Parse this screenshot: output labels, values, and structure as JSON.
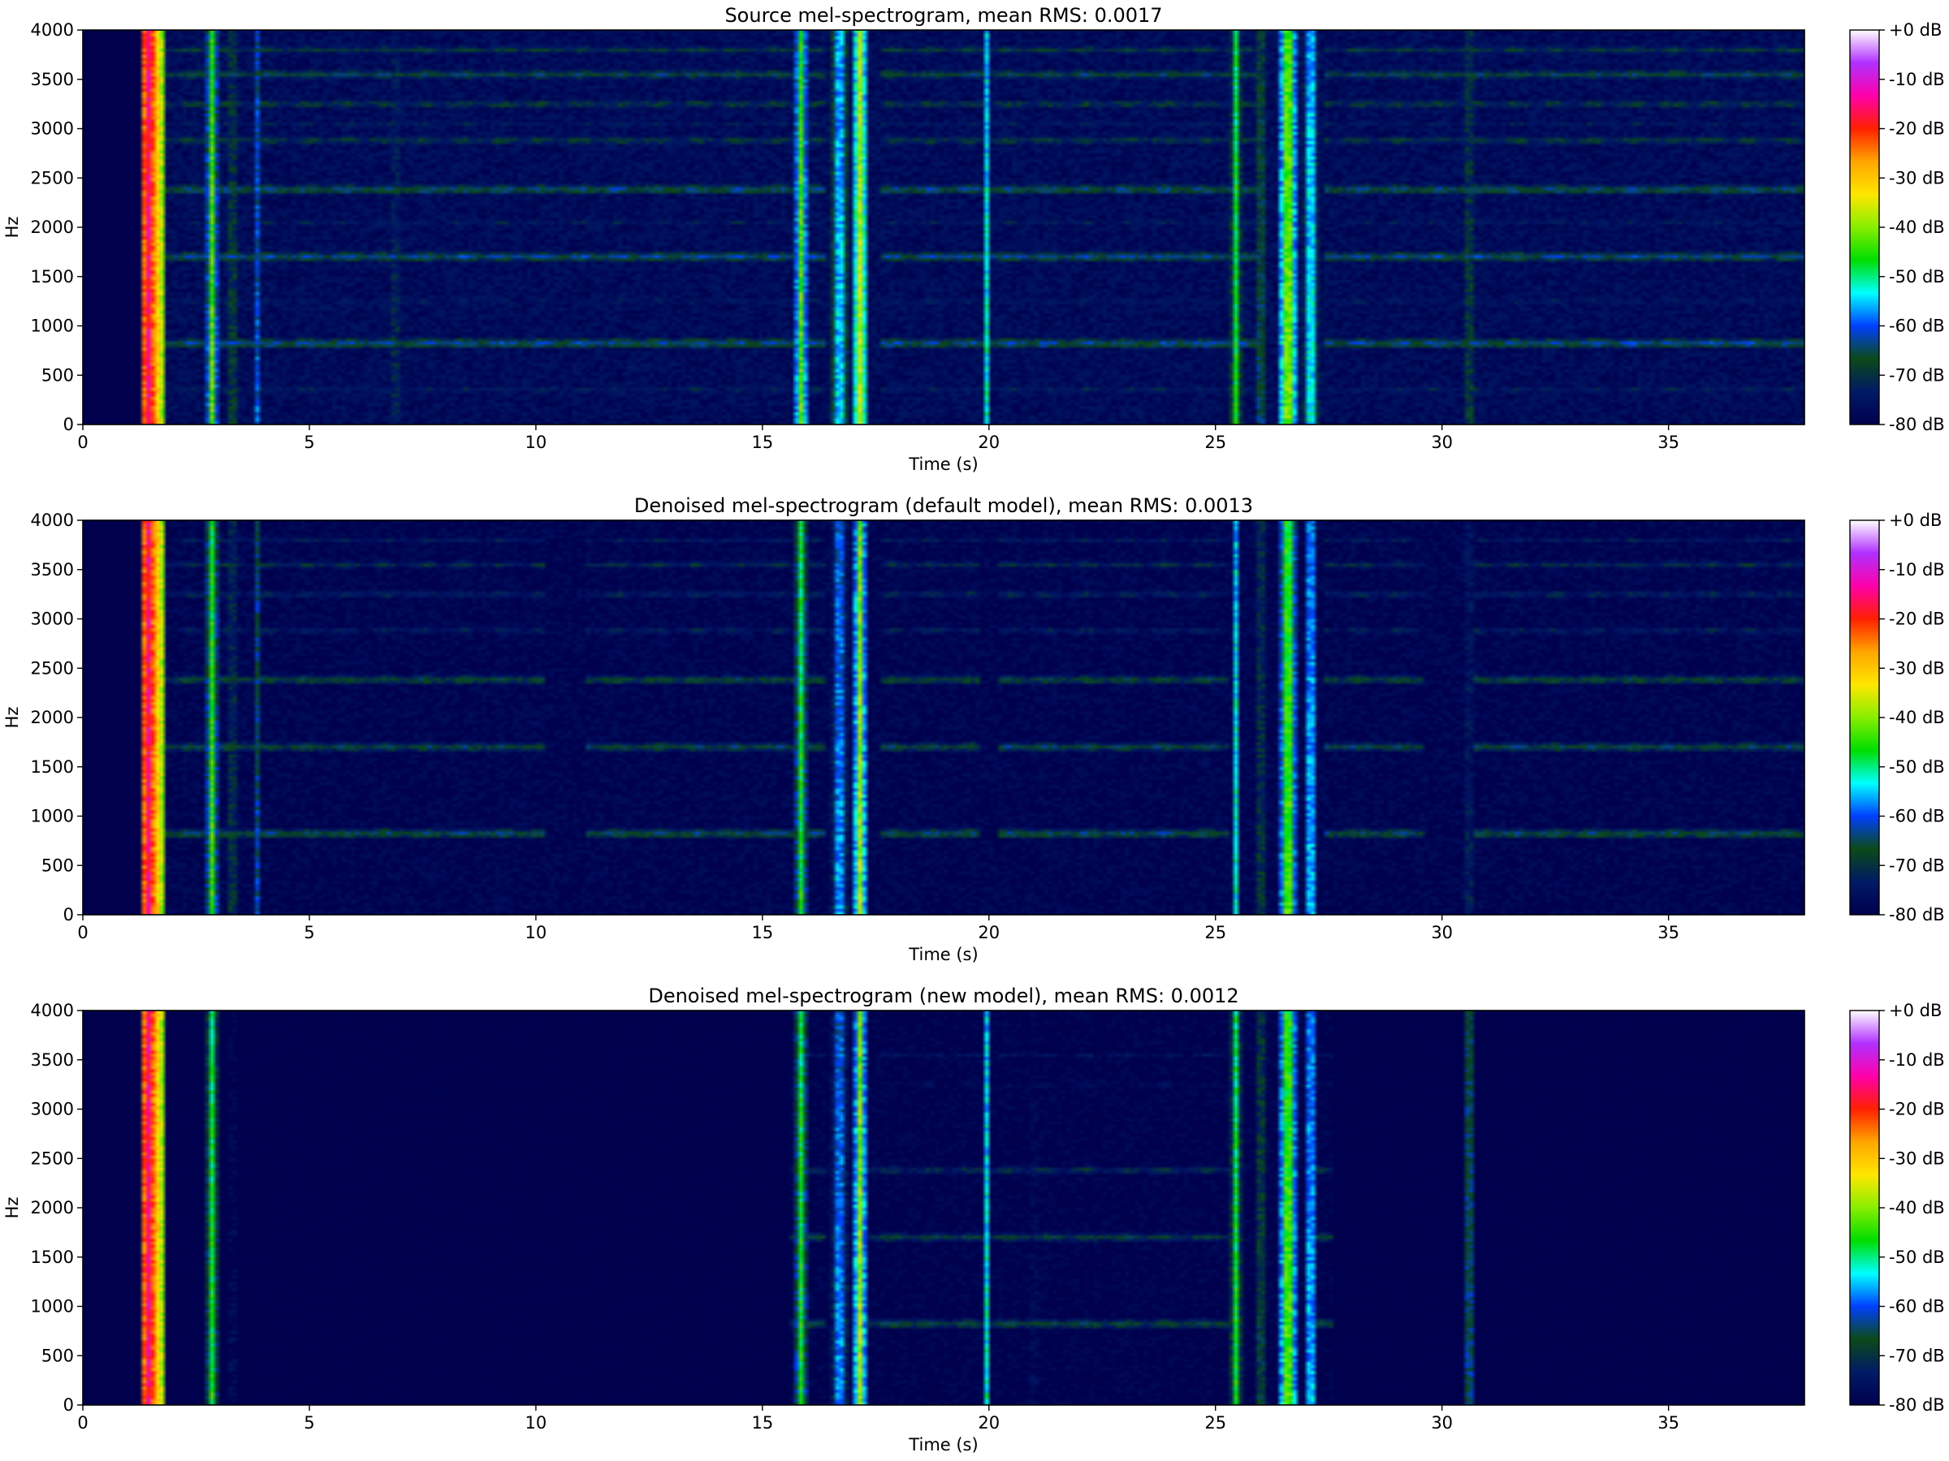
{
  "chart_data": [
    {
      "type": "heatmap",
      "title": "Source mel-spectrogram, mean RMS: 0.0017",
      "xlabel": "Time (s)",
      "ylabel": "Hz",
      "xlim": [
        0,
        38.0
      ],
      "ylim": [
        0,
        4000
      ],
      "x_ticks": [
        0,
        5,
        10,
        15,
        20,
        25,
        30,
        35
      ],
      "x_tick_labels": [
        "0",
        "5",
        "10",
        "15",
        "20",
        "25",
        "30",
        "35"
      ],
      "y_ticks": [
        0,
        500,
        1000,
        1500,
        2000,
        2500,
        3000,
        3500,
        4000
      ],
      "y_tick_labels": [
        "0",
        "500",
        "1000",
        "1500",
        "2000",
        "2500",
        "3000",
        "3500",
        "4000"
      ],
      "colorbar": {
        "range": [
          -80,
          0
        ],
        "ticks": [
          0,
          -10,
          -20,
          -30,
          -40,
          -50,
          -60,
          -70,
          -80
        ],
        "tick_labels": [
          "+0 dB",
          "-10 dB",
          "-20 dB",
          "-30 dB",
          "-40 dB",
          "-50 dB",
          "-60 dB",
          "-70 dB",
          "-80 dB"
        ],
        "colormap": [
          "#00004d",
          "#001a66",
          "#0b4a18",
          "#0040ff",
          "#00ffff",
          "#00dd00",
          "#88ee00",
          "#ffe600",
          "#ffa500",
          "#ff2000",
          "#ff00aa",
          "#b030ff",
          "#ffffff"
        ]
      },
      "background_db": -77,
      "silence_until_s": 1.3,
      "harmonic_bands": [
        {
          "hz": 820,
          "db": -60
        },
        {
          "hz": 1700,
          "db": -61
        },
        {
          "hz": 2380,
          "db": -61
        },
        {
          "hz": 2880,
          "db": -66
        },
        {
          "hz": 3250,
          "db": -66
        },
        {
          "hz": 3550,
          "db": -64
        },
        {
          "hz": 3800,
          "db": -67
        },
        {
          "hz": 1250,
          "db": -71
        },
        {
          "hz": 350,
          "db": -70
        },
        {
          "hz": 3050,
          "db": -72
        },
        {
          "hz": 2050,
          "db": -72
        }
      ],
      "band_gaps": [
        [
          16.4,
          17.6
        ],
        [
          26.0,
          27.4
        ]
      ],
      "events": [
        {
          "t": 1.45,
          "width_s": 0.35,
          "peak_db": -15
        },
        {
          "t": 2.85,
          "width_s": 0.15,
          "peak_db": -42
        },
        {
          "t": 3.3,
          "width_s": 0.1,
          "peak_db": -55
        },
        {
          "t": 3.85,
          "width_s": 0.08,
          "peak_db": -60
        },
        {
          "t": 6.9,
          "width_s": 0.08,
          "peak_db": -55
        },
        {
          "t": 9.2,
          "width_s": 0.06,
          "peak_db": -62
        },
        {
          "t": 15.85,
          "width_s": 0.18,
          "peak_db": -42
        },
        {
          "t": 16.7,
          "width_s": 0.22,
          "peak_db": -48
        },
        {
          "t": 17.15,
          "width_s": 0.18,
          "peak_db": -36
        },
        {
          "t": 18.8,
          "width_s": 0.06,
          "peak_db": -62
        },
        {
          "t": 19.95,
          "width_s": 0.1,
          "peak_db": -52
        },
        {
          "t": 21.0,
          "width_s": 0.08,
          "peak_db": -60
        },
        {
          "t": 23.3,
          "width_s": 0.06,
          "peak_db": -62
        },
        {
          "t": 25.45,
          "width_s": 0.12,
          "peak_db": -46
        },
        {
          "t": 26.0,
          "width_s": 0.1,
          "peak_db": -52
        },
        {
          "t": 26.6,
          "width_s": 0.2,
          "peak_db": -34
        },
        {
          "t": 27.1,
          "width_s": 0.15,
          "peak_db": -44
        },
        {
          "t": 30.6,
          "width_s": 0.1,
          "peak_db": -55
        },
        {
          "t": 31.4,
          "width_s": 0.06,
          "peak_db": -62
        },
        {
          "t": 33.9,
          "width_s": 0.06,
          "peak_db": -62
        }
      ]
    },
    {
      "type": "heatmap",
      "title": "Denoised mel-spectrogram (default model), mean RMS: 0.0013",
      "xlabel": "Time (s)",
      "ylabel": "Hz",
      "xlim": [
        0,
        38.0
      ],
      "ylim": [
        0,
        4000
      ],
      "x_ticks": [
        0,
        5,
        10,
        15,
        20,
        25,
        30,
        35
      ],
      "x_tick_labels": [
        "0",
        "5",
        "10",
        "15",
        "20",
        "25",
        "30",
        "35"
      ],
      "y_ticks": [
        0,
        500,
        1000,
        1500,
        2000,
        2500,
        3000,
        3500,
        4000
      ],
      "y_tick_labels": [
        "0",
        "500",
        "1000",
        "1500",
        "2000",
        "2500",
        "3000",
        "3500",
        "4000"
      ],
      "colorbar": {
        "range": [
          -80,
          0
        ],
        "ticks": [
          0,
          -10,
          -20,
          -30,
          -40,
          -50,
          -60,
          -70,
          -80
        ],
        "tick_labels": [
          "+0 dB",
          "-10 dB",
          "-20 dB",
          "-30 dB",
          "-40 dB",
          "-50 dB",
          "-60 dB",
          "-70 dB",
          "-80 dB"
        ],
        "colormap": [
          "#00004d",
          "#001a66",
          "#0b4a18",
          "#0040ff",
          "#00ffff",
          "#00dd00",
          "#88ee00",
          "#ffe600",
          "#ffa500",
          "#ff2000",
          "#ff00aa",
          "#b030ff",
          "#ffffff"
        ]
      },
      "background_db": -79,
      "silence_until_s": 1.3,
      "harmonic_bands": [
        {
          "hz": 820,
          "db": -62
        },
        {
          "hz": 1700,
          "db": -64
        },
        {
          "hz": 2380,
          "db": -64
        },
        {
          "hz": 2880,
          "db": -70
        },
        {
          "hz": 3250,
          "db": -69
        },
        {
          "hz": 3550,
          "db": -69
        },
        {
          "hz": 3800,
          "db": -72
        }
      ],
      "band_gaps": [
        [
          10.2,
          11.1
        ],
        [
          16.4,
          17.6
        ],
        [
          19.8,
          20.2
        ],
        [
          25.3,
          27.4
        ],
        [
          29.6,
          30.7
        ]
      ],
      "events": [
        {
          "t": 1.45,
          "width_s": 0.35,
          "peak_db": -15
        },
        {
          "t": 2.85,
          "width_s": 0.15,
          "peak_db": -44
        },
        {
          "t": 3.3,
          "width_s": 0.1,
          "peak_db": -57
        },
        {
          "t": 3.85,
          "width_s": 0.08,
          "peak_db": -62
        },
        {
          "t": 9.2,
          "width_s": 0.06,
          "peak_db": -56
        },
        {
          "t": 15.85,
          "width_s": 0.16,
          "peak_db": -46
        },
        {
          "t": 16.7,
          "width_s": 0.18,
          "peak_db": -50
        },
        {
          "t": 17.15,
          "width_s": 0.16,
          "peak_db": -38
        },
        {
          "t": 18.8,
          "width_s": 0.06,
          "peak_db": -62
        },
        {
          "t": 25.45,
          "width_s": 0.1,
          "peak_db": -52
        },
        {
          "t": 26.0,
          "width_s": 0.1,
          "peak_db": -56
        },
        {
          "t": 26.6,
          "width_s": 0.18,
          "peak_db": -36
        },
        {
          "t": 27.1,
          "width_s": 0.14,
          "peak_db": -46
        },
        {
          "t": 30.6,
          "width_s": 0.08,
          "peak_db": -56
        }
      ]
    },
    {
      "type": "heatmap",
      "title": "Denoised mel-spectrogram (new model), mean RMS: 0.0012",
      "xlabel": "Time (s)",
      "ylabel": "Hz",
      "xlim": [
        0,
        38.0
      ],
      "ylim": [
        0,
        4000
      ],
      "x_ticks": [
        0,
        5,
        10,
        15,
        20,
        25,
        30,
        35
      ],
      "x_tick_labels": [
        "0",
        "5",
        "10",
        "15",
        "20",
        "25",
        "30",
        "35"
      ],
      "y_ticks": [
        0,
        500,
        1000,
        1500,
        2000,
        2500,
        3000,
        3500,
        4000
      ],
      "y_tick_labels": [
        "0",
        "500",
        "1000",
        "1500",
        "2000",
        "2500",
        "3000",
        "3500",
        "4000"
      ],
      "colorbar": {
        "range": [
          -80,
          0
        ],
        "ticks": [
          0,
          -10,
          -20,
          -30,
          -40,
          -50,
          -60,
          -70,
          -80
        ],
        "tick_labels": [
          "+0 dB",
          "-10 dB",
          "-20 dB",
          "-30 dB",
          "-40 dB",
          "-50 dB",
          "-60 dB",
          "-70 dB",
          "-80 dB"
        ],
        "colormap": [
          "#00004d",
          "#001a66",
          "#0b4a18",
          "#0040ff",
          "#00ffff",
          "#00dd00",
          "#88ee00",
          "#ffe600",
          "#ffa500",
          "#ff2000",
          "#ff00aa",
          "#b030ff",
          "#ffffff"
        ]
      },
      "background_db": -80,
      "silence_until_s": 1.3,
      "active_regions": [
        [
          15.6,
          27.6
        ]
      ],
      "harmonic_bands": [
        {
          "hz": 820,
          "db": -64
        },
        {
          "hz": 1700,
          "db": -66
        },
        {
          "hz": 2380,
          "db": -68
        },
        {
          "hz": 3250,
          "db": -74
        },
        {
          "hz": 3550,
          "db": -74
        }
      ],
      "band_gaps": [
        [
          16.4,
          17.3
        ],
        [
          25.3,
          27.1
        ]
      ],
      "events": [
        {
          "t": 1.45,
          "width_s": 0.35,
          "peak_db": -15
        },
        {
          "t": 2.85,
          "width_s": 0.14,
          "peak_db": -46
        },
        {
          "t": 3.3,
          "width_s": 0.08,
          "peak_db": -60
        },
        {
          "t": 15.85,
          "width_s": 0.16,
          "peak_db": -46
        },
        {
          "t": 16.7,
          "width_s": 0.18,
          "peak_db": -50
        },
        {
          "t": 17.15,
          "width_s": 0.16,
          "peak_db": -38
        },
        {
          "t": 18.8,
          "width_s": 0.06,
          "peak_db": -60
        },
        {
          "t": 19.95,
          "width_s": 0.1,
          "peak_db": -52
        },
        {
          "t": 21.0,
          "width_s": 0.08,
          "peak_db": -60
        },
        {
          "t": 25.45,
          "width_s": 0.12,
          "peak_db": -46
        },
        {
          "t": 26.0,
          "width_s": 0.1,
          "peak_db": -54
        },
        {
          "t": 26.6,
          "width_s": 0.2,
          "peak_db": -36
        },
        {
          "t": 27.1,
          "width_s": 0.14,
          "peak_db": -46
        },
        {
          "t": 30.6,
          "width_s": 0.1,
          "peak_db": -50
        },
        {
          "t": 31.4,
          "width_s": 0.06,
          "peak_db": -64
        }
      ]
    }
  ]
}
